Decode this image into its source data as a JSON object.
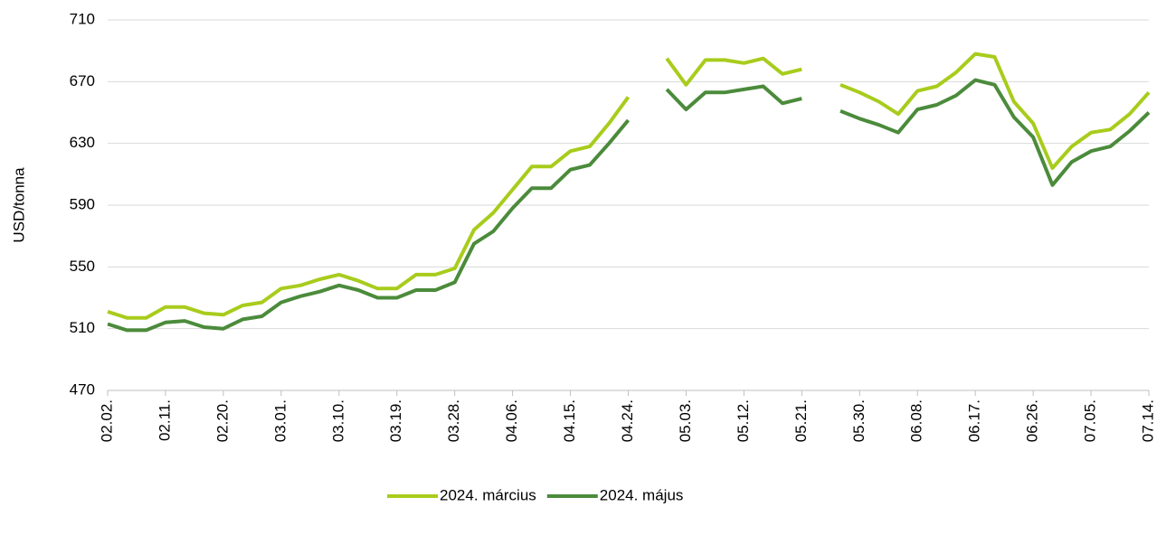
{
  "chart_data": {
    "type": "line",
    "y_label": "USD/tonna",
    "categories": [
      "02.02.",
      null,
      null,
      "02.11.",
      null,
      null,
      "02.20.",
      null,
      null,
      "03.01.",
      null,
      null,
      "03.10.",
      null,
      null,
      "03.19.",
      null,
      null,
      "03.28.",
      null,
      null,
      "04.06.",
      null,
      null,
      "04.15.",
      null,
      null,
      "04.24.",
      null,
      null,
      "05.03.",
      null,
      null,
      "05.12.",
      null,
      null,
      "05.21.",
      null,
      null,
      "05.30.",
      null,
      null,
      "06.08.",
      null,
      null,
      "06.17.",
      null,
      null,
      "06.26.",
      null,
      null,
      "07.05.",
      null,
      null,
      "07.14."
    ],
    "series": [
      {
        "name": "2024. március",
        "color": "#a8cc1c",
        "values": [
          521,
          517,
          517,
          524,
          524,
          520,
          519,
          525,
          527,
          536,
          538,
          542,
          545,
          541,
          536,
          536,
          545,
          545,
          549,
          574,
          585,
          600,
          615,
          615,
          625,
          628,
          643,
          660,
          null,
          685,
          668,
          684,
          684,
          682,
          685,
          675,
          678,
          null,
          668,
          663,
          657,
          649,
          664,
          667,
          676,
          688,
          686,
          657,
          643,
          614,
          628,
          637,
          639,
          649,
          663
        ]
      },
      {
        "name": "2024. május",
        "color": "#4b8b3b",
        "values": [
          513,
          509,
          509,
          514,
          515,
          511,
          510,
          516,
          518,
          527,
          531,
          534,
          538,
          535,
          530,
          530,
          535,
          535,
          540,
          565,
          573,
          588,
          601,
          601,
          613,
          616,
          630,
          645,
          null,
          665,
          652,
          663,
          663,
          665,
          667,
          656,
          659,
          null,
          651,
          646,
          642,
          637,
          652,
          655,
          661,
          671,
          668,
          647,
          634,
          603,
          618,
          625,
          628,
          638,
          650
        ]
      }
    ],
    "ylim": [
      470,
      710
    ],
    "yticks": [
      470,
      510,
      550,
      590,
      630,
      670,
      710
    ],
    "grid": true,
    "legend": "bottom"
  }
}
